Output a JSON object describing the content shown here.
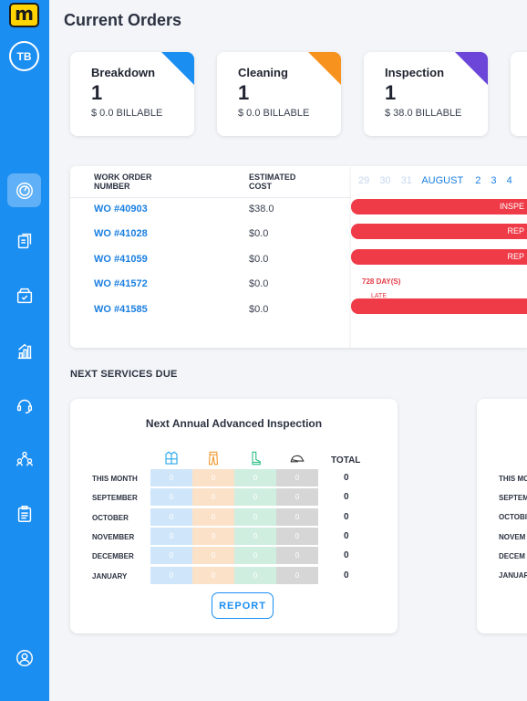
{
  "app": {
    "logo_letter": "m"
  },
  "user": {
    "initials": "TB"
  },
  "nav": [
    "speedometer-icon",
    "work-order-icon",
    "inventory-box-icon",
    "analytics-chart-icon",
    "support-headset-icon",
    "users-group-icon",
    "checklist-icon",
    "profile-icon"
  ],
  "page_title": "Current Orders",
  "cards": [
    {
      "title": "Breakdown",
      "count": "1",
      "billable": "$ 0.0 BILLABLE",
      "color": "#1b8ef2"
    },
    {
      "title": "Cleaning",
      "count": "1",
      "billable": "$ 0.0 BILLABLE",
      "color": "#f7921e"
    },
    {
      "title": "Inspection",
      "count": "1",
      "billable": "$ 38.0 BILLABLE",
      "color": "#6b46d8"
    }
  ],
  "orders": {
    "headers": {
      "wo_line1": "WORK ORDER",
      "wo_line2": "NUMBER",
      "cost_line1": "ESTIMATED",
      "cost_line2": "COST"
    },
    "rows": [
      {
        "wo": "WO #40903",
        "cost": "$38.0"
      },
      {
        "wo": "WO #41028",
        "cost": "$0.0"
      },
      {
        "wo": "WO #41059",
        "cost": "$0.0"
      },
      {
        "wo": "WO #41572",
        "cost": "$0.0"
      },
      {
        "wo": "WO #41585",
        "cost": "$0.0"
      }
    ]
  },
  "timeline": {
    "dates_before": [
      "29",
      "30",
      "31"
    ],
    "month": "AUGUST",
    "dates_after": [
      "2",
      "3",
      "4"
    ],
    "bars": [
      "INSPE",
      "REP",
      "REP"
    ],
    "late_label": "728 DAY(S)",
    "late_sub": "LATE"
  },
  "next_services": {
    "section_title": "NEXT SERVICES DUE",
    "card_title": "Next Annual Advanced Inspection",
    "icons": [
      "jacket-icon",
      "pants-icon",
      "boot-icon",
      "helmet-icon"
    ],
    "column_colors": [
      "#cfe6fa",
      "#fbe1c8",
      "#cfeee0",
      "#d6d6d6"
    ],
    "total_header": "TOTAL",
    "rows": [
      {
        "label": "THIS MONTH",
        "values": [
          "0",
          "0",
          "0",
          "0"
        ],
        "total": "0"
      },
      {
        "label": "SEPTEMBER",
        "values": [
          "0",
          "0",
          "0",
          "0"
        ],
        "total": "0"
      },
      {
        "label": "OCTOBER",
        "values": [
          "0",
          "0",
          "0",
          "0"
        ],
        "total": "0"
      },
      {
        "label": "NOVEMBER",
        "values": [
          "0",
          "0",
          "0",
          "0"
        ],
        "total": "0"
      },
      {
        "label": "DECEMBER",
        "values": [
          "0",
          "0",
          "0",
          "0"
        ],
        "total": "0"
      },
      {
        "label": "JANUARY",
        "values": [
          "0",
          "0",
          "0",
          "0"
        ],
        "total": "0"
      }
    ],
    "report_label": "REPORT",
    "second_card_labels": [
      "THIS MO",
      "SEPTEM",
      "OCTOBI",
      "NOVEM",
      "DECEM",
      "JANUAR"
    ]
  }
}
